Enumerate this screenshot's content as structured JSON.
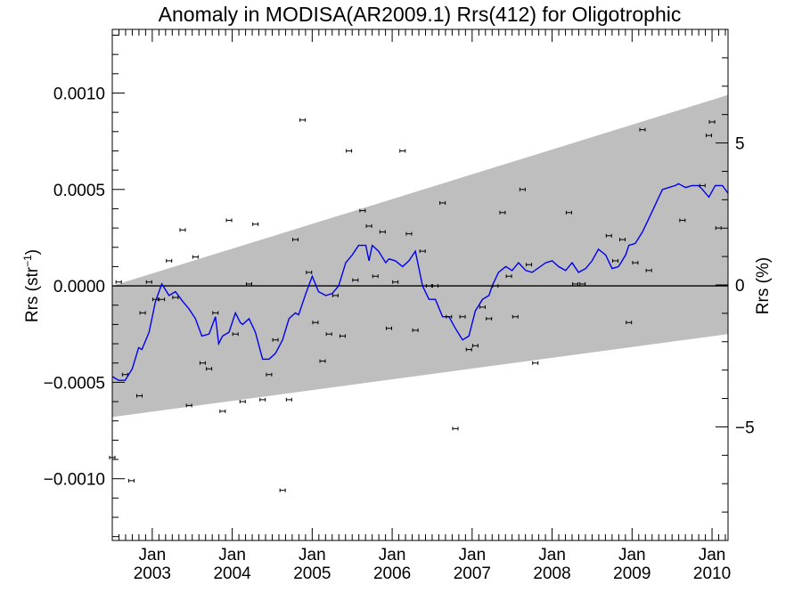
{
  "chart_data": {
    "type": "scatter",
    "title": "Anomaly in MODISA(AR2009.1) Rrs(412) for Oligotrophic",
    "ylabel_left": {
      "base": "Rrs (str",
      "sup": "−1",
      "tail": ")"
    },
    "ylabel_right": "Rrs (%)",
    "xlim": [
      2002.5,
      2010.2
    ],
    "ylim": [
      -0.00132,
      0.00133
    ],
    "y2lim": [
      -9.0,
      9.0
    ],
    "x_ticks": [
      {
        "value": 2003.0,
        "month": "Jan",
        "year": "2003"
      },
      {
        "value": 2004.0,
        "month": "Jan",
        "year": "2004"
      },
      {
        "value": 2005.0,
        "month": "Jan",
        "year": "2005"
      },
      {
        "value": 2006.0,
        "month": "Jan",
        "year": "2006"
      },
      {
        "value": 2007.0,
        "month": "Jan",
        "year": "2007"
      },
      {
        "value": 2008.0,
        "month": "Jan",
        "year": "2008"
      },
      {
        "value": 2009.0,
        "month": "Jan",
        "year": "2009"
      },
      {
        "value": 2010.0,
        "month": "Jan",
        "year": "2010"
      }
    ],
    "y_ticks": [
      {
        "value": 0.001,
        "label": "0.0010"
      },
      {
        "value": 0.0005,
        "label": "0.0005"
      },
      {
        "value": 0.0,
        "label": "0.0000"
      },
      {
        "value": -0.0005,
        "label": "−0.0005"
      },
      {
        "value": -0.001,
        "label": "−0.0010"
      }
    ],
    "y2_ticks": [
      {
        "value": 5,
        "label": "5"
      },
      {
        "value": 0,
        "label": "0"
      },
      {
        "value": -5,
        "label": "−5"
      }
    ],
    "band": {
      "color": "#bebebe",
      "upper": [
        [
          2002.5,
          0.0
        ],
        [
          2010.2,
          0.00099
        ]
      ],
      "lower": [
        [
          2002.5,
          -0.00068
        ],
        [
          2010.2,
          -0.00025
        ]
      ]
    },
    "zero_line": 0.0,
    "points": [
      [
        2002.5,
        -0.00089
      ],
      [
        2002.58,
        2e-05
      ],
      [
        2002.66,
        -0.00046
      ],
      [
        2002.74,
        -0.00101
      ],
      [
        2002.84,
        -0.00057
      ],
      [
        2002.88,
        -0.00014
      ],
      [
        2002.96,
        2e-05
      ],
      [
        2003.04,
        -7e-05
      ],
      [
        2003.12,
        -7e-05
      ],
      [
        2003.21,
        0.00013
      ],
      [
        2003.29,
        -6e-05
      ],
      [
        2003.38,
        0.00029
      ],
      [
        2003.46,
        -0.00062
      ],
      [
        2003.54,
        0.00015
      ],
      [
        2003.63,
        -0.0004
      ],
      [
        2003.71,
        -0.00043
      ],
      [
        2003.79,
        -0.00014
      ],
      [
        2003.88,
        -0.00065
      ],
      [
        2003.96,
        0.00034
      ],
      [
        2004.04,
        -0.00025
      ],
      [
        2004.13,
        -0.0006
      ],
      [
        2004.21,
        1e-05
      ],
      [
        2004.29,
        0.00032
      ],
      [
        2004.38,
        -0.00059
      ],
      [
        2004.46,
        -0.00046
      ],
      [
        2004.54,
        -0.00028
      ],
      [
        2004.63,
        -0.00106
      ],
      [
        2004.71,
        -0.00059
      ],
      [
        2004.79,
        0.00024
      ],
      [
        2004.88,
        0.00086
      ],
      [
        2004.96,
        7e-05
      ],
      [
        2005.04,
        -0.00019
      ],
      [
        2005.13,
        -0.00039
      ],
      [
        2005.21,
        -0.00025
      ],
      [
        2005.29,
        -5e-05
      ],
      [
        2005.38,
        -0.00026
      ],
      [
        2005.46,
        0.0007
      ],
      [
        2005.54,
        3e-05
      ],
      [
        2005.63,
        0.00039
      ],
      [
        2005.71,
        0.00031
      ],
      [
        2005.79,
        5e-05
      ],
      [
        2005.88,
        0.00028
      ],
      [
        2005.96,
        -0.00022
      ],
      [
        2006.04,
        2e-05
      ],
      [
        2006.13,
        0.0007
      ],
      [
        2006.21,
        0.00027
      ],
      [
        2006.29,
        -0.00023
      ],
      [
        2006.38,
        0.00018
      ],
      [
        2006.46,
        0.0
      ],
      [
        2006.54,
        0.0
      ],
      [
        2006.63,
        0.00043
      ],
      [
        2006.71,
        -0.00016
      ],
      [
        2006.79,
        -0.00074
      ],
      [
        2006.88,
        -0.00016
      ],
      [
        2006.96,
        -0.00033
      ],
      [
        2007.04,
        -0.00031
      ],
      [
        2007.13,
        -0.00011
      ],
      [
        2007.21,
        -0.00017
      ],
      [
        2007.29,
        0.0
      ],
      [
        2007.38,
        0.00038
      ],
      [
        2007.46,
        5e-05
      ],
      [
        2007.54,
        -0.00016
      ],
      [
        2007.63,
        0.0005
      ],
      [
        2007.71,
        0.00011
      ],
      [
        2007.79,
        -0.0004
      ],
      [
        2008.21,
        0.00038
      ],
      [
        2008.29,
        1e-05
      ],
      [
        2008.38,
        1e-05
      ],
      [
        2008.71,
        0.00026
      ],
      [
        2008.79,
        0.00013
      ],
      [
        2008.88,
        0.00024
      ],
      [
        2008.96,
        -0.00019
      ],
      [
        2009.04,
        0.00012
      ],
      [
        2009.13,
        0.00081
      ],
      [
        2009.21,
        8e-05
      ],
      [
        2009.63,
        0.00034
      ],
      [
        2009.88,
        0.00052
      ],
      [
        2009.96,
        0.00078
      ],
      [
        2010.0,
        0.00085
      ],
      [
        2010.08,
        0.0003
      ]
    ],
    "line_color": "#0000ee",
    "line": [
      [
        2002.5,
        -0.00047
      ],
      [
        2002.58,
        -0.00049
      ],
      [
        2002.66,
        -0.00049
      ],
      [
        2002.75,
        -0.00043
      ],
      [
        2002.83,
        -0.00032
      ],
      [
        2002.87,
        -0.00033
      ],
      [
        2002.96,
        -0.00024
      ],
      [
        2003.04,
        -8e-05
      ],
      [
        2003.12,
        1e-05
      ],
      [
        2003.21,
        -5e-05
      ],
      [
        2003.29,
        -3e-05
      ],
      [
        2003.38,
        -8e-05
      ],
      [
        2003.46,
        -0.00012
      ],
      [
        2003.54,
        -0.00017
      ],
      [
        2003.62,
        -0.00026
      ],
      [
        2003.71,
        -0.00025
      ],
      [
        2003.79,
        -0.00016
      ],
      [
        2003.83,
        -0.0003
      ],
      [
        2003.88,
        -0.00026
      ],
      [
        2003.96,
        -0.00024
      ],
      [
        2004.04,
        -0.00014
      ],
      [
        2004.1,
        -0.00019
      ],
      [
        2004.13,
        -0.0002
      ],
      [
        2004.21,
        -0.00017
      ],
      [
        2004.29,
        -0.00024
      ],
      [
        2004.38,
        -0.00038
      ],
      [
        2004.46,
        -0.00038
      ],
      [
        2004.54,
        -0.00035
      ],
      [
        2004.63,
        -0.00028
      ],
      [
        2004.71,
        -0.00017
      ],
      [
        2004.79,
        -0.00014
      ],
      [
        2004.83,
        -0.00015
      ],
      [
        2004.92,
        -4e-05
      ],
      [
        2005.0,
        5e-05
      ],
      [
        2005.08,
        -3e-05
      ],
      [
        2005.17,
        -5e-05
      ],
      [
        2005.25,
        -4e-05
      ],
      [
        2005.33,
        0.0
      ],
      [
        2005.42,
        0.00012
      ],
      [
        2005.5,
        0.00016
      ],
      [
        2005.58,
        0.00021
      ],
      [
        2005.67,
        0.00021
      ],
      [
        2005.71,
        0.00013
      ],
      [
        2005.75,
        0.00021
      ],
      [
        2005.83,
        0.00018
      ],
      [
        2005.92,
        0.00012
      ],
      [
        2005.96,
        0.00014
      ],
      [
        2006.04,
        0.00013
      ],
      [
        2006.13,
        0.0001
      ],
      [
        2006.21,
        0.00013
      ],
      [
        2006.29,
        0.00018
      ],
      [
        2006.38,
        0.0
      ],
      [
        2006.46,
        -7e-05
      ],
      [
        2006.54,
        -7e-05
      ],
      [
        2006.63,
        -0.00016
      ],
      [
        2006.71,
        -0.00016
      ],
      [
        2006.79,
        -0.00022
      ],
      [
        2006.88,
        -0.00028
      ],
      [
        2006.96,
        -0.00026
      ],
      [
        2007.04,
        -0.00013
      ],
      [
        2007.13,
        -7e-05
      ],
      [
        2007.21,
        -5e-05
      ],
      [
        2007.25,
        0.0
      ],
      [
        2007.33,
        7e-05
      ],
      [
        2007.42,
        0.0001
      ],
      [
        2007.5,
        8e-05
      ],
      [
        2007.58,
        0.00012
      ],
      [
        2007.67,
        8e-05
      ],
      [
        2007.75,
        7e-05
      ],
      [
        2007.92,
        0.00012
      ],
      [
        2008.0,
        0.00013
      ],
      [
        2008.08,
        0.0001
      ],
      [
        2008.17,
        8e-05
      ],
      [
        2008.25,
        0.00012
      ],
      [
        2008.33,
        7e-05
      ],
      [
        2008.42,
        9e-05
      ],
      [
        2008.5,
        0.00013
      ],
      [
        2008.58,
        0.00019
      ],
      [
        2008.67,
        0.00016
      ],
      [
        2008.75,
        9e-05
      ],
      [
        2008.83,
        0.0001
      ],
      [
        2008.92,
        0.00016
      ],
      [
        2008.96,
        0.00021
      ],
      [
        2009.04,
        0.00022
      ],
      [
        2009.13,
        0.00028
      ],
      [
        2009.21,
        0.00035
      ],
      [
        2009.29,
        0.00042
      ],
      [
        2009.38,
        0.0005
      ],
      [
        2009.46,
        0.00051
      ],
      [
        2009.54,
        0.00052
      ],
      [
        2009.58,
        0.00053
      ],
      [
        2009.67,
        0.00051
      ],
      [
        2009.75,
        0.00052
      ],
      [
        2009.83,
        0.00052
      ],
      [
        2009.88,
        0.0005
      ],
      [
        2009.96,
        0.00046
      ],
      [
        2010.04,
        0.00052
      ],
      [
        2010.13,
        0.00052
      ],
      [
        2010.2,
        0.00048
      ]
    ]
  }
}
